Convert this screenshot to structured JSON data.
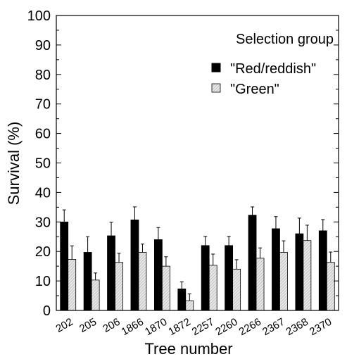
{
  "chart_data": {
    "type": "bar",
    "title": "",
    "xlabel": "Tree number",
    "ylabel": "Survival (%)",
    "ylim": [
      0,
      100
    ],
    "yticks": [
      0,
      10,
      20,
      30,
      40,
      50,
      60,
      70,
      80,
      90,
      100
    ],
    "categories": [
      "202",
      "205",
      "206",
      "1866",
      "1870",
      "1872",
      "2257",
      "2260",
      "2266",
      "2367",
      "2368",
      "2370"
    ],
    "legend": {
      "title": "Selection group",
      "placement": "top-right"
    },
    "series": [
      {
        "name": "\"Red/reddish\"",
        "color": "#000000",
        "values": [
          30.0,
          19.7,
          25.3,
          30.7,
          24.0,
          7.3,
          22.0,
          22.0,
          32.3,
          27.7,
          26.0,
          27.0
        ],
        "error": [
          4.1,
          5.3,
          4.6,
          4.4,
          4.1,
          2.4,
          3.1,
          3.1,
          2.8,
          4.1,
          5.3,
          3.8
        ]
      },
      {
        "name": "\"Green\"",
        "color": "#d9d9d9",
        "pattern": "hatched",
        "values": [
          17.3,
          10.3,
          16.3,
          19.7,
          15.0,
          3.3,
          15.3,
          14.0,
          17.7,
          19.7,
          23.7,
          16.3
        ],
        "error": [
          4.6,
          2.4,
          3.1,
          2.8,
          3.2,
          2.3,
          3.8,
          3.2,
          3.5,
          3.9,
          5.2,
          3.5
        ]
      }
    ]
  }
}
